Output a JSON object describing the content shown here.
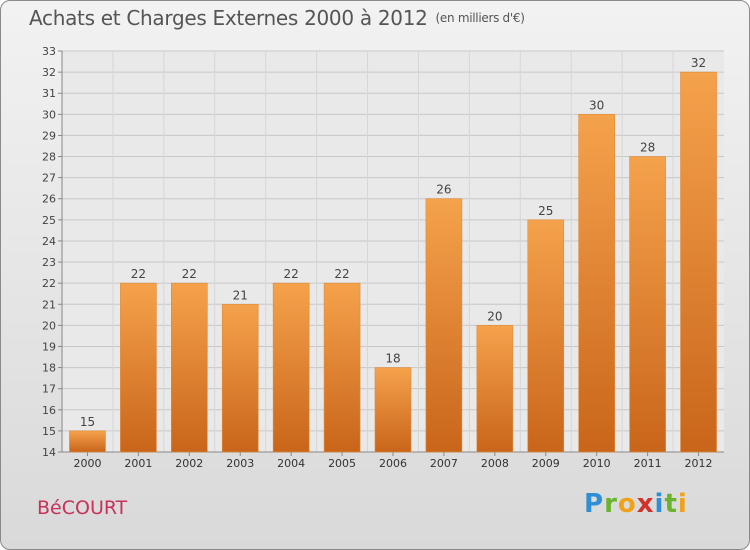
{
  "header": {
    "title": "Achats et Charges Externes 2000 à 2012",
    "unit": "(en milliers d'€)"
  },
  "footer": {
    "commune": "BéCOURT",
    "logo": "Proxiti"
  },
  "colors": {
    "bar_light": "#f5a24c",
    "bar_dark": "#c9651a",
    "commune": "#c8315a"
  },
  "chart_data": {
    "type": "bar",
    "title": "Achats et Charges Externes 2000 à 2012",
    "subtitle": "(en milliers d'€)",
    "categories": [
      "2000",
      "2001",
      "2002",
      "2003",
      "2004",
      "2005",
      "2006",
      "2007",
      "2008",
      "2009",
      "2010",
      "2011",
      "2012"
    ],
    "values": [
      15,
      22,
      22,
      21,
      22,
      22,
      18,
      26,
      20,
      25,
      30,
      28,
      32
    ],
    "ylim": [
      14,
      33
    ],
    "yticks": [
      14,
      15,
      16,
      17,
      18,
      19,
      20,
      21,
      22,
      23,
      24,
      25,
      26,
      27,
      28,
      29,
      30,
      31,
      32,
      33
    ],
    "grid": true,
    "legend": "none"
  }
}
